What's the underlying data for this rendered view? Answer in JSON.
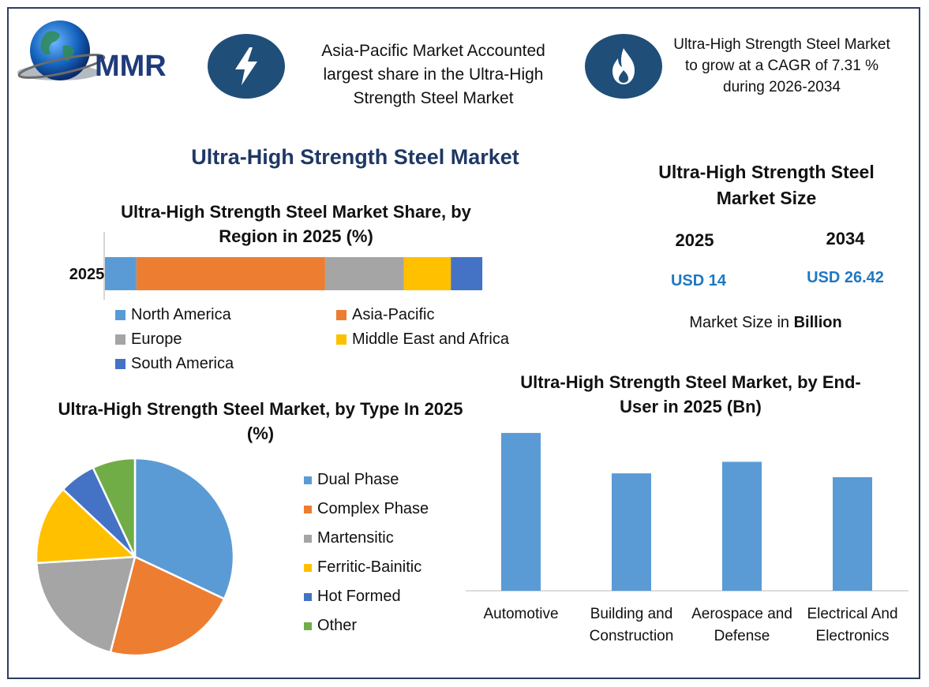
{
  "header": {
    "logo_text": "MMR",
    "highlight_left": "Asia-Pacific Market Accounted largest share in the Ultra-High Strength Steel Market",
    "highlight_right": "Ultra-High Strength Steel Market to grow at a CAGR of 7.31 % during 2026-2034",
    "left_icon": "lightning-icon",
    "right_icon": "flame-icon"
  },
  "main_title": "Ultra-High Strength Steel Market",
  "market_size": {
    "title": "Ultra-High Strength Steel Market Size",
    "year_a": "2025",
    "value_a": "USD 14",
    "year_b": "2034",
    "value_b": "USD 26.42",
    "unit_prefix": "Market Size in ",
    "unit_bold": "Billion"
  },
  "colors": {
    "blue": "#5b9bd5",
    "orange": "#ed7d31",
    "gray": "#a5a5a5",
    "yellow": "#ffc000",
    "darkblue": "#4472c4",
    "green": "#70ad47",
    "navy": "#1f4e79",
    "accent_text": "#1f78c1"
  },
  "chart_data": [
    {
      "type": "bar",
      "orientation": "horizontal-stacked",
      "title": "Ultra-High Strength Steel Market Share, by Region in 2025 (%)",
      "categories": [
        "2025"
      ],
      "series": [
        {
          "name": "North America",
          "values": [
            8
          ]
        },
        {
          "name": "Asia-Pacific",
          "values": [
            48
          ]
        },
        {
          "name": "Europe",
          "values": [
            20
          ]
        },
        {
          "name": "Middle East and Africa",
          "values": [
            12
          ]
        },
        {
          "name": "South America",
          "values": [
            8
          ]
        }
      ],
      "xlim": [
        0,
        100
      ],
      "legend": "bottom"
    },
    {
      "type": "pie",
      "title": "Ultra-High Strength Steel Market, by Type In 2025 (%)",
      "categories": [
        "Dual Phase",
        "Complex Phase",
        "Martensitic",
        "Ferritic-Bainitic",
        "Hot Formed",
        "Other"
      ],
      "values": [
        32,
        22,
        20,
        13,
        6,
        7
      ],
      "legend": "right"
    },
    {
      "type": "bar",
      "title": "Ultra-High Strength Steel Market, by End-User in 2025 (Bn)",
      "categories": [
        "Automotive",
        "Building and Construction",
        "Aerospace and Defense",
        "Electrical And Electronics"
      ],
      "values": [
        4.1,
        3.05,
        3.35,
        2.95
      ],
      "ylim": [
        0,
        4.2
      ],
      "grid": false
    }
  ]
}
